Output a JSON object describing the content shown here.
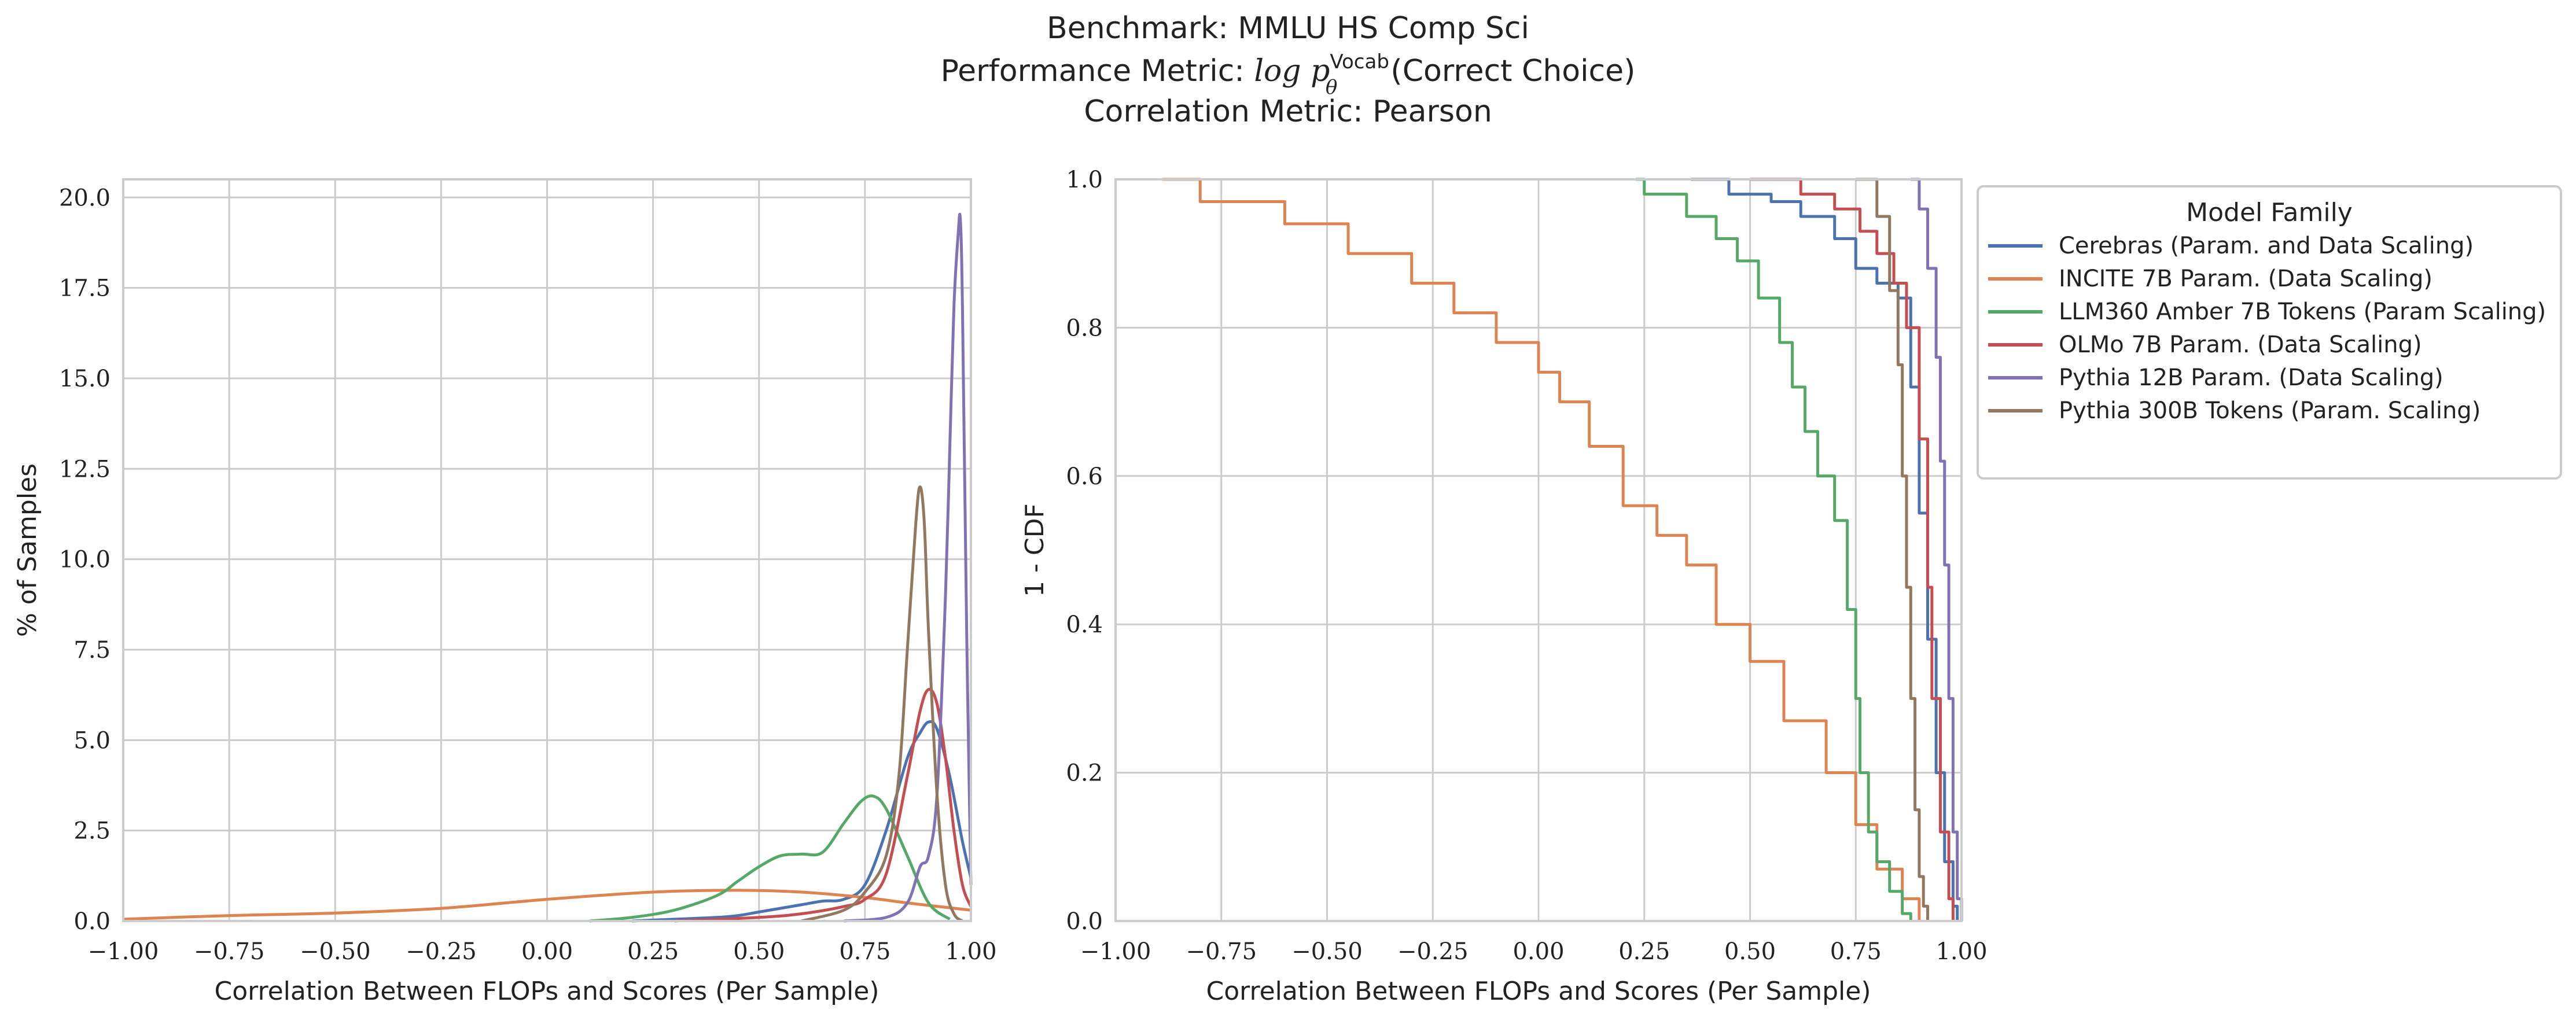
{
  "title": {
    "line1": "Benchmark: MMLU HS Comp Sci",
    "line2_prefix": "Performance Metric: ",
    "line2_math": "log p",
    "line2_sup": "Vocab",
    "line2_sub": "θ",
    "line2_suffix": "(Correct Choice)",
    "line3": "Correlation Metric: Pearson"
  },
  "legend": {
    "title": "Model Family"
  },
  "colors": {
    "Cerebras": "#4c72b0",
    "INCITE": "#dd8452",
    "LLM360": "#55a868",
    "OLMo": "#c44e52",
    "Pythia12B": "#8172b3",
    "Pythia300B": "#937860"
  },
  "chart_data": [
    {
      "type": "line",
      "subtype": "kde",
      "xlabel": "Correlation Between FLOPs and Scores (Per Sample)",
      "ylabel": "% of Samples",
      "xlim": [
        -1.0,
        1.0
      ],
      "ylim": [
        0,
        20.5
      ],
      "xticks": [
        -1.0,
        -0.75,
        -0.5,
        -0.25,
        0.0,
        0.25,
        0.5,
        0.75,
        1.0
      ],
      "xtick_labels": [
        "−1.00",
        "−0.75",
        "−0.50",
        "−0.25",
        "0.00",
        "0.25",
        "0.50",
        "0.75",
        "1.00"
      ],
      "yticks": [
        0,
        2.5,
        5,
        7.5,
        10,
        12.5,
        15,
        17.5,
        20
      ],
      "ytick_labels": [
        "0.0",
        "2.5",
        "5.0",
        "7.5",
        "10.0",
        "12.5",
        "15.0",
        "17.5",
        "20.0"
      ],
      "grid": true,
      "series": [
        {
          "name": "Cerebras (Param. and Data Scaling)",
          "color_key": "Cerebras",
          "x": [
            0.2,
            0.3,
            0.4,
            0.45,
            0.5,
            0.55,
            0.6,
            0.65,
            0.7,
            0.75,
            0.8,
            0.85,
            0.88,
            0.9,
            0.92,
            0.95,
            0.98,
            1.0
          ],
          "y": [
            0,
            0.05,
            0.1,
            0.15,
            0.25,
            0.35,
            0.45,
            0.55,
            0.6,
            1.0,
            2.5,
            4.5,
            5.2,
            5.5,
            5.3,
            4.0,
            2.2,
            1.2
          ]
        },
        {
          "name": "INCITE 7B Param. (Data Scaling)",
          "color_key": "INCITE",
          "x": [
            -1.0,
            -0.75,
            -0.5,
            -0.25,
            0.0,
            0.25,
            0.45,
            0.6,
            0.75,
            0.85,
            1.0
          ],
          "y": [
            0.05,
            0.15,
            0.22,
            0.35,
            0.6,
            0.8,
            0.85,
            0.8,
            0.65,
            0.5,
            0.3
          ]
        },
        {
          "name": "LLM360 Amber 7B Tokens (Param Scaling)",
          "color_key": "LLM360",
          "x": [
            0.1,
            0.2,
            0.3,
            0.4,
            0.45,
            0.5,
            0.55,
            0.6,
            0.65,
            0.7,
            0.74,
            0.77,
            0.8,
            0.85,
            0.9,
            0.95
          ],
          "y": [
            0,
            0.1,
            0.3,
            0.7,
            1.1,
            1.5,
            1.8,
            1.85,
            1.9,
            2.7,
            3.3,
            3.45,
            3.1,
            1.8,
            0.5,
            0.05
          ]
        },
        {
          "name": "OLMo 7B Param. (Data Scaling)",
          "color_key": "OLMo",
          "x": [
            0.3,
            0.5,
            0.6,
            0.7,
            0.75,
            0.8,
            0.85,
            0.88,
            0.9,
            0.92,
            0.94,
            0.96,
            0.98,
            1.0
          ],
          "y": [
            0,
            0.1,
            0.2,
            0.4,
            0.6,
            1.3,
            4.0,
            5.8,
            6.4,
            6.0,
            4.5,
            2.5,
            1.0,
            0.4
          ]
        },
        {
          "name": "Pythia 12B Param. (Data Scaling)",
          "color_key": "Pythia12B",
          "x": [
            0.7,
            0.8,
            0.85,
            0.88,
            0.9,
            0.92,
            0.94,
            0.95,
            0.96,
            0.97,
            0.975,
            0.98,
            0.99,
            1.0
          ],
          "y": [
            0,
            0.1,
            0.5,
            1.5,
            1.8,
            3.5,
            9.0,
            13.0,
            17.0,
            19.0,
            19.4,
            17.0,
            8.0,
            1.0
          ]
        },
        {
          "name": "Pythia 300B Tokens (Param. Scaling)",
          "color_key": "Pythia300B",
          "x": [
            0.6,
            0.7,
            0.75,
            0.8,
            0.83,
            0.85,
            0.87,
            0.88,
            0.89,
            0.9,
            0.92,
            0.94,
            0.96,
            0.98
          ],
          "y": [
            0,
            0.3,
            0.8,
            1.8,
            4.0,
            7.5,
            11.0,
            12.0,
            11.0,
            8.0,
            3.5,
            1.0,
            0.2,
            0
          ]
        }
      ]
    },
    {
      "type": "line",
      "subtype": "step",
      "xlabel": "Correlation Between FLOPs and Scores (Per Sample)",
      "ylabel": "1 - CDF",
      "xlim": [
        -1.0,
        1.0
      ],
      "ylim": [
        0,
        1.0
      ],
      "xticks": [
        -1.0,
        -0.75,
        -0.5,
        -0.25,
        0.0,
        0.25,
        0.5,
        0.75,
        1.0
      ],
      "xtick_labels": [
        "−1.00",
        "−0.75",
        "−0.50",
        "−0.25",
        "0.00",
        "0.25",
        "0.50",
        "0.75",
        "1.00"
      ],
      "yticks": [
        0,
        0.2,
        0.4,
        0.6,
        0.8,
        1.0
      ],
      "ytick_labels": [
        "0.0",
        "0.2",
        "0.4",
        "0.6",
        "0.8",
        "1.0"
      ],
      "grid": true,
      "legend_position": "outside-right",
      "series": [
        {
          "name": "Cerebras (Param. and Data Scaling)",
          "color_key": "Cerebras",
          "x": [
            0.36,
            0.45,
            0.55,
            0.62,
            0.7,
            0.75,
            0.8,
            0.85,
            0.88,
            0.9,
            0.92,
            0.94,
            0.96,
            0.98,
            0.99
          ],
          "y": [
            1.0,
            0.98,
            0.97,
            0.95,
            0.92,
            0.88,
            0.86,
            0.84,
            0.72,
            0.55,
            0.38,
            0.2,
            0.08,
            0.02,
            0.0
          ]
        },
        {
          "name": "INCITE 7B Param. (Data Scaling)",
          "color_key": "INCITE",
          "x": [
            -0.89,
            -0.8,
            -0.6,
            -0.45,
            -0.3,
            -0.2,
            -0.1,
            0.0,
            0.05,
            0.12,
            0.2,
            0.28,
            0.35,
            0.42,
            0.5,
            0.58,
            0.68,
            0.75,
            0.8,
            0.86,
            0.9
          ],
          "y": [
            1.0,
            0.97,
            0.94,
            0.9,
            0.86,
            0.82,
            0.78,
            0.74,
            0.7,
            0.64,
            0.56,
            0.52,
            0.48,
            0.4,
            0.35,
            0.27,
            0.2,
            0.13,
            0.07,
            0.03,
            0.0
          ]
        },
        {
          "name": "LLM360 Amber 7B Tokens (Param Scaling)",
          "color_key": "LLM360",
          "x": [
            0.23,
            0.25,
            0.35,
            0.42,
            0.47,
            0.52,
            0.57,
            0.6,
            0.63,
            0.66,
            0.7,
            0.73,
            0.75,
            0.76,
            0.78,
            0.8,
            0.83,
            0.86,
            0.88
          ],
          "y": [
            1.0,
            0.98,
            0.95,
            0.92,
            0.89,
            0.84,
            0.78,
            0.72,
            0.66,
            0.6,
            0.54,
            0.42,
            0.3,
            0.2,
            0.12,
            0.08,
            0.04,
            0.01,
            0.0
          ]
        },
        {
          "name": "OLMo 7B Param. (Data Scaling)",
          "color_key": "OLMo",
          "x": [
            0.5,
            0.62,
            0.7,
            0.76,
            0.8,
            0.84,
            0.87,
            0.9,
            0.92,
            0.93,
            0.95,
            0.97,
            0.98
          ],
          "y": [
            1.0,
            0.98,
            0.96,
            0.93,
            0.9,
            0.86,
            0.8,
            0.65,
            0.45,
            0.3,
            0.12,
            0.03,
            0.0
          ]
        },
        {
          "name": "Pythia 12B Param. (Data Scaling)",
          "color_key": "Pythia12B",
          "x": [
            0.88,
            0.9,
            0.92,
            0.94,
            0.95,
            0.96,
            0.97,
            0.98,
            0.99,
            1.0
          ],
          "y": [
            1.0,
            0.96,
            0.88,
            0.76,
            0.62,
            0.48,
            0.3,
            0.12,
            0.03,
            0.0
          ]
        },
        {
          "name": "Pythia 300B Tokens (Param. Scaling)",
          "color_key": "Pythia300B",
          "x": [
            0.75,
            0.8,
            0.83,
            0.85,
            0.86,
            0.87,
            0.88,
            0.89,
            0.9,
            0.91,
            0.92
          ],
          "y": [
            1.0,
            0.95,
            0.85,
            0.75,
            0.6,
            0.45,
            0.3,
            0.15,
            0.06,
            0.02,
            0.0
          ]
        }
      ]
    }
  ]
}
